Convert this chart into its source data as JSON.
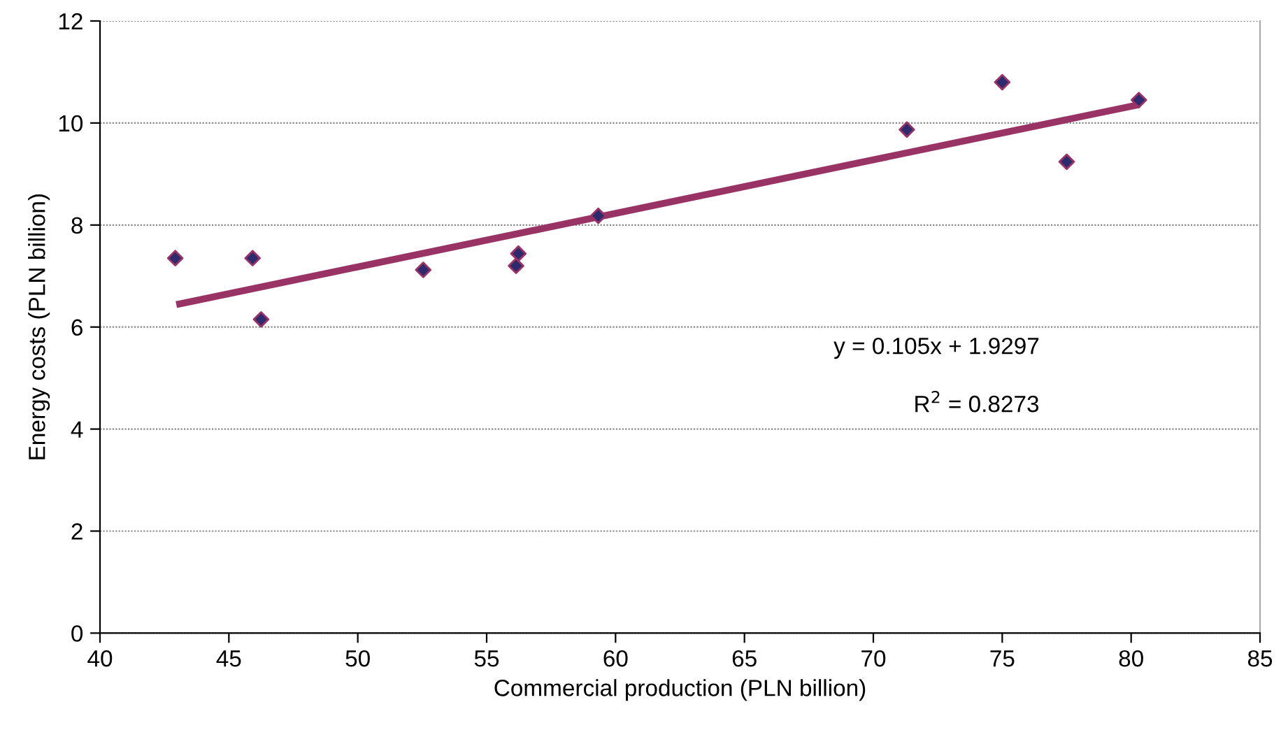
{
  "chart_data": {
    "type": "scatter",
    "xlabel": "Commercial production (PLN billion)",
    "ylabel": "Energy costs (PLN billion)",
    "xlim": [
      40,
      85
    ],
    "xticks": [
      40,
      45,
      50,
      55,
      60,
      65,
      70,
      75,
      80,
      85
    ],
    "ylim": [
      0,
      12
    ],
    "yticks": [
      0,
      2,
      4,
      6,
      8,
      10,
      12
    ],
    "grid": "y",
    "legend": false,
    "series": [
      {
        "marker": "diamond",
        "color": "#2e2a6e",
        "x": [
          42.92,
          45.92,
          46.25,
          52.54,
          56.14,
          56.23,
          59.33,
          71.3,
          75.0,
          77.5,
          80.3
        ],
        "values": [
          7.35,
          7.35,
          6.15,
          7.12,
          7.2,
          7.44,
          8.18,
          9.87,
          10.8,
          9.24,
          10.45
        ]
      },
      {
        "type": "line",
        "marker": "none",
        "color": "#993366",
        "x": [
          42.96,
          80.3
        ],
        "values": [
          6.44,
          10.36
        ]
      }
    ],
    "annotations": [
      "y = 0.105x + 1.9297",
      "R$^{2}$ = 0.8273"
    ]
  }
}
